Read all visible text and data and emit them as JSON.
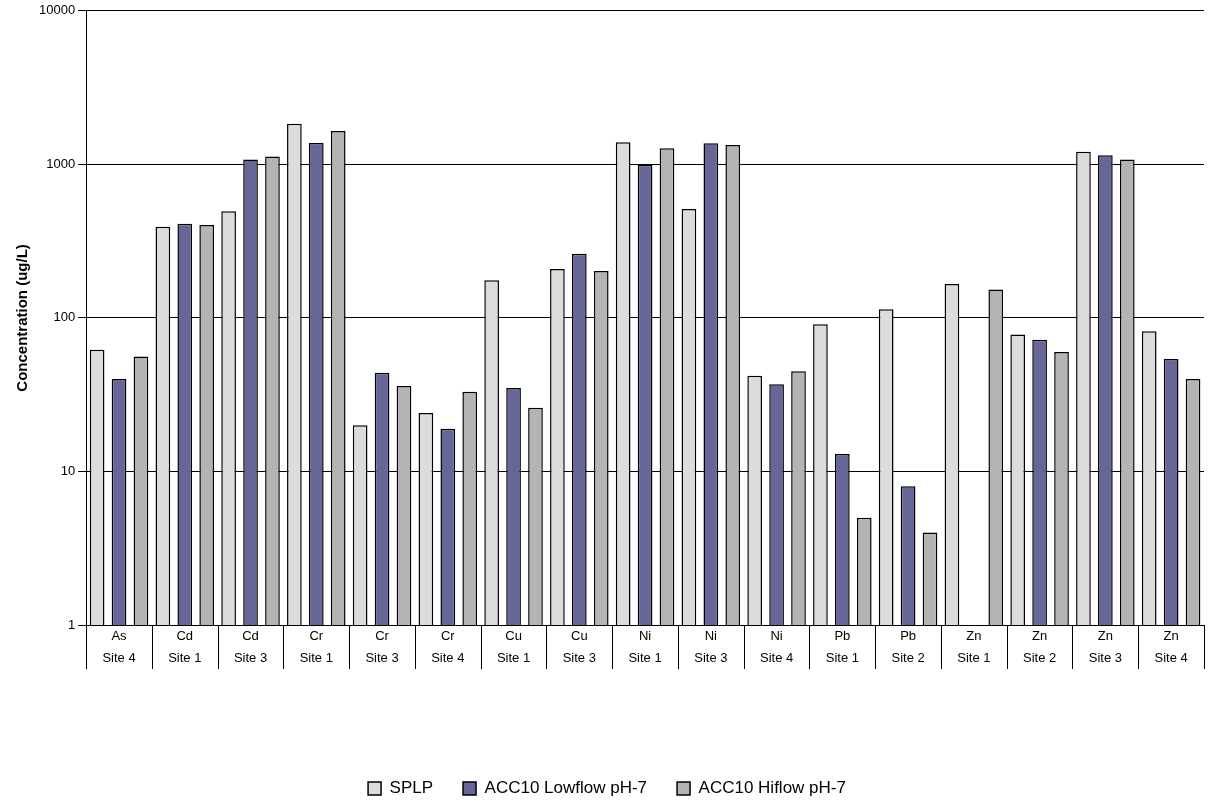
{
  "chart_data": {
    "type": "bar",
    "ylabel": "Concentration (ug/L)",
    "categories": [
      "As\nSite 4",
      "Cd\nSite 1",
      "Cd\nSite 3",
      "Cr\nSite 1",
      "Cr\nSite 3",
      "Cr\nSite 4",
      "Cu\nSite 1",
      "Cu\nSite 3",
      "Ni\nSite 1",
      "Ni\nSite 3",
      "Ni\nSite 4",
      "Pb\nSite 1",
      "Pb\nSite 2",
      "Zn\nSite 1",
      "Zn\nSite 2",
      "Zn\nSite 3",
      "Zn\nSite 4"
    ],
    "series": [
      {
        "name": "SPLP",
        "color": "#dcdcdc",
        "values": [
          62,
          393,
          495,
          1835,
          20,
          24,
          176,
          208,
          1393,
          512,
          42,
          91,
          114,
          166,
          78,
          1208,
          82
        ]
      },
      {
        "name": "ACC10 Lowflow pH-7",
        "color": "#666699",
        "values": [
          40,
          410,
          1075,
          1378,
          44,
          19,
          35,
          262,
          993,
          1371,
          37,
          13,
          8,
          null,
          72,
          1146,
          54
        ]
      },
      {
        "name": "ACC10 Hiflow pH-7",
        "color": "#b4b4b4",
        "values": [
          56,
          403,
          1127,
          1650,
          36,
          33,
          26,
          202,
          1273,
          1335,
          45,
          5,
          4,
          153,
          60,
          1075,
          40
        ]
      }
    ],
    "log": "y",
    "ylim": [
      1,
      10000
    ],
    "yticks": [
      1,
      10,
      100,
      1000,
      10000
    ],
    "grid": "y",
    "legend": "bottom"
  }
}
